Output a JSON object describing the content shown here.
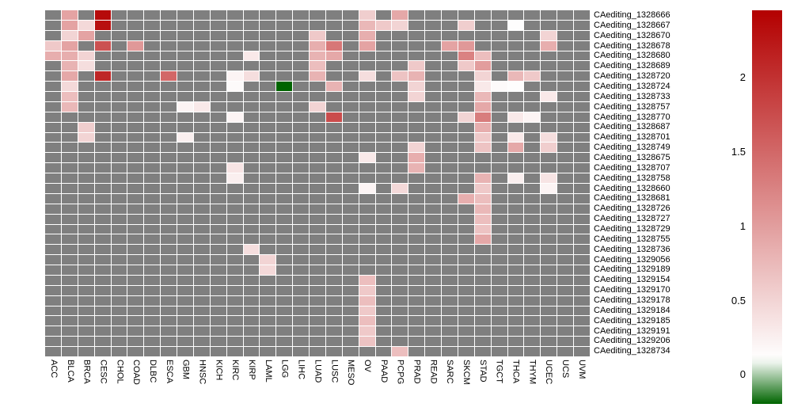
{
  "chart_data": {
    "type": "heatmap",
    "title": "",
    "columns": [
      "ACC",
      "BLCA",
      "BRCA",
      "CESC",
      "CHOL",
      "COAD",
      "DLBC",
      "ESCA",
      "GBM",
      "HNSC",
      "KICH",
      "KIRC",
      "KIRP",
      "LAML",
      "LGG",
      "LIHC",
      "LUAD",
      "LUSC",
      "MESO",
      "OV",
      "PAAD",
      "PCPG",
      "PRAD",
      "READ",
      "SARC",
      "SKCM",
      "STAD",
      "TGCT",
      "THCA",
      "THYM",
      "UCEC",
      "UCS",
      "UVM"
    ],
    "rows": [
      "CAediting_1328666",
      "CAediting_1328667",
      "CAediting_1328670",
      "CAediting_1328678",
      "CAediting_1328680",
      "CAediting_1328689",
      "CAediting_1328720",
      "CAediting_1328724",
      "CAediting_1328733",
      "CAediting_1328757",
      "CAediting_1328770",
      "CAediting_1328687",
      "CAediting_1328701",
      "CAediting_1328749",
      "CAediting_1328675",
      "CAediting_1328707",
      "CAediting_1328758",
      "CAediting_1328660",
      "CAediting_1328681",
      "CAediting_1328726",
      "CAediting_1328727",
      "CAediting_1328729",
      "CAediting_1328755",
      "CAediting_1328736",
      "CAediting_1329056",
      "CAediting_1329189",
      "CAediting_1329154",
      "CAediting_1329170",
      "CAediting_1329178",
      "CAediting_1329184",
      "CAediting_1329185",
      "CAediting_1329191",
      "CAediting_1329206",
      "CAediting_1328734"
    ],
    "na_color": "#7F7F7F",
    "grid_line_color": "#FFFFFF",
    "legend_position": "right",
    "colorscale": {
      "min": -0.2,
      "white_point": 0.1,
      "max": 2.45,
      "neg_color": "#006400",
      "mid_color": "#FFFFFF",
      "pos_color": "#B30000"
    },
    "colorbar_ticks": [
      {
        "label": "2",
        "value": 2
      },
      {
        "label": "1.5",
        "value": 1.5
      },
      {
        "label": "1",
        "value": 1
      },
      {
        "label": "0.5",
        "value": 0.5
      },
      {
        "label": "0",
        "value": 0
      }
    ],
    "cells": [
      [
        0,
        1,
        0.95
      ],
      [
        0,
        3,
        2.35
      ],
      [
        0,
        19,
        0.55
      ],
      [
        0,
        21,
        0.9
      ],
      [
        1,
        1,
        0.95
      ],
      [
        1,
        2,
        0.45
      ],
      [
        1,
        3,
        2.3
      ],
      [
        1,
        19,
        0.75
      ],
      [
        1,
        20,
        0.6
      ],
      [
        1,
        21,
        0.5
      ],
      [
        1,
        25,
        0.55
      ],
      [
        1,
        28,
        0.12
      ],
      [
        2,
        1,
        0.5
      ],
      [
        2,
        2,
        0.95
      ],
      [
        2,
        16,
        0.6
      ],
      [
        2,
        19,
        0.85
      ],
      [
        2,
        30,
        0.5
      ],
      [
        3,
        0,
        0.6
      ],
      [
        3,
        1,
        0.95
      ],
      [
        3,
        3,
        1.7
      ],
      [
        3,
        5,
        1.05
      ],
      [
        3,
        16,
        0.85
      ],
      [
        3,
        17,
        1.35
      ],
      [
        3,
        19,
        0.95
      ],
      [
        3,
        24,
        0.95
      ],
      [
        3,
        25,
        1.05
      ],
      [
        3,
        30,
        0.85
      ],
      [
        4,
        0,
        0.85
      ],
      [
        4,
        1,
        0.85
      ],
      [
        4,
        2,
        0.5
      ],
      [
        4,
        12,
        0.3
      ],
      [
        4,
        16,
        0.8
      ],
      [
        4,
        17,
        0.9
      ],
      [
        4,
        25,
        1.25
      ],
      [
        4,
        26,
        0.7
      ],
      [
        5,
        1,
        0.8
      ],
      [
        5,
        2,
        0.4
      ],
      [
        5,
        16,
        0.7
      ],
      [
        5,
        22,
        0.6
      ],
      [
        5,
        25,
        0.6
      ],
      [
        5,
        26,
        1.0
      ],
      [
        6,
        1,
        0.9
      ],
      [
        6,
        3,
        2.1
      ],
      [
        6,
        7,
        1.5
      ],
      [
        6,
        11,
        0.2
      ],
      [
        6,
        12,
        0.4
      ],
      [
        6,
        16,
        0.8
      ],
      [
        6,
        19,
        0.4
      ],
      [
        6,
        21,
        0.65
      ],
      [
        6,
        22,
        0.8
      ],
      [
        6,
        26,
        0.5
      ],
      [
        6,
        28,
        0.75
      ],
      [
        6,
        29,
        0.6
      ],
      [
        7,
        1,
        0.45
      ],
      [
        7,
        11,
        0.15
      ],
      [
        7,
        14,
        -0.2
      ],
      [
        7,
        17,
        0.8
      ],
      [
        7,
        22,
        0.5
      ],
      [
        7,
        26,
        0.3
      ],
      [
        7,
        27,
        0.15
      ],
      [
        7,
        28,
        0.12
      ],
      [
        8,
        1,
        0.7
      ],
      [
        8,
        22,
        0.5
      ],
      [
        8,
        26,
        0.75
      ],
      [
        8,
        30,
        0.3
      ],
      [
        9,
        1,
        0.75
      ],
      [
        9,
        8,
        0.2
      ],
      [
        9,
        9,
        0.3
      ],
      [
        9,
        16,
        0.5
      ],
      [
        9,
        26,
        0.9
      ],
      [
        10,
        11,
        0.2
      ],
      [
        10,
        17,
        1.75
      ],
      [
        10,
        25,
        0.5
      ],
      [
        10,
        26,
        1.3
      ],
      [
        10,
        28,
        0.3
      ],
      [
        10,
        29,
        0.2
      ],
      [
        11,
        2,
        0.55
      ],
      [
        11,
        26,
        0.85
      ],
      [
        12,
        2,
        0.5
      ],
      [
        12,
        8,
        0.25
      ],
      [
        12,
        26,
        0.6
      ],
      [
        12,
        28,
        0.3
      ],
      [
        12,
        30,
        0.4
      ],
      [
        13,
        22,
        0.5
      ],
      [
        13,
        26,
        0.65
      ],
      [
        13,
        28,
        0.9
      ],
      [
        13,
        30,
        0.55
      ],
      [
        14,
        19,
        0.3
      ],
      [
        14,
        22,
        0.85
      ],
      [
        15,
        11,
        0.35
      ],
      [
        15,
        22,
        0.8
      ],
      [
        16,
        11,
        0.25
      ],
      [
        16,
        26,
        0.8
      ],
      [
        16,
        28,
        0.25
      ],
      [
        16,
        30,
        0.35
      ],
      [
        17,
        19,
        0.2
      ],
      [
        17,
        21,
        0.45
      ],
      [
        17,
        26,
        0.6
      ],
      [
        17,
        30,
        0.2
      ],
      [
        18,
        25,
        0.85
      ],
      [
        18,
        26,
        0.7
      ],
      [
        19,
        26,
        0.75
      ],
      [
        20,
        26,
        0.7
      ],
      [
        21,
        26,
        0.65
      ],
      [
        22,
        26,
        0.9
      ],
      [
        23,
        12,
        0.4
      ],
      [
        24,
        13,
        0.5
      ],
      [
        25,
        13,
        0.45
      ],
      [
        26,
        19,
        0.7
      ],
      [
        27,
        19,
        0.6
      ],
      [
        28,
        19,
        0.7
      ],
      [
        29,
        19,
        0.6
      ],
      [
        30,
        19,
        0.7
      ],
      [
        31,
        19,
        0.6
      ],
      [
        32,
        19,
        0.65
      ],
      [
        33,
        21,
        0.7
      ]
    ]
  }
}
